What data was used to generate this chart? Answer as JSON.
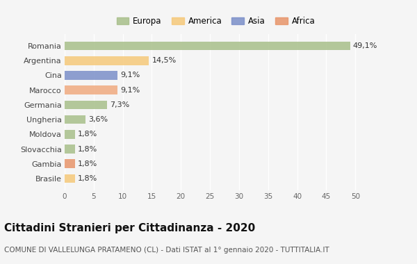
{
  "countries": [
    "Romania",
    "Argentina",
    "Cina",
    "Marocco",
    "Germania",
    "Ungheria",
    "Moldova",
    "Slovacchia",
    "Gambia",
    "Brasile"
  ],
  "values": [
    49.1,
    14.5,
    9.1,
    9.1,
    7.3,
    3.6,
    1.8,
    1.8,
    1.8,
    1.8
  ],
  "labels": [
    "49,1%",
    "14,5%",
    "9,1%",
    "9,1%",
    "7,3%",
    "3,6%",
    "1,8%",
    "1,8%",
    "1,8%",
    "1,8%"
  ],
  "colors": [
    "#a8bf8a",
    "#f5c97a",
    "#7b8fc9",
    "#f0aa80",
    "#a8bf8a",
    "#a8bf8a",
    "#a8bf8a",
    "#a8bf8a",
    "#e8956a",
    "#f5c97a"
  ],
  "continents": [
    "Europa",
    "America",
    "Asia",
    "Africa"
  ],
  "legend_colors": [
    "#a8bf8a",
    "#f5c97a",
    "#7b8fc9",
    "#e8956a"
  ],
  "title": "Cittadini Stranieri per Cittadinanza - 2020",
  "subtitle": "COMUNE DI VALLELUNGA PRATAMENO (CL) - Dati ISTAT al 1° gennaio 2020 - TUTTITALIA.IT",
  "xlim": [
    0,
    52
  ],
  "xticks": [
    0,
    5,
    10,
    15,
    20,
    25,
    30,
    35,
    40,
    45,
    50
  ],
  "bg_color": "#f5f5f5",
  "bar_alpha": 0.85,
  "title_fontsize": 11,
  "subtitle_fontsize": 7.5,
  "label_fontsize": 8,
  "ytick_fontsize": 8,
  "xtick_fontsize": 7.5
}
